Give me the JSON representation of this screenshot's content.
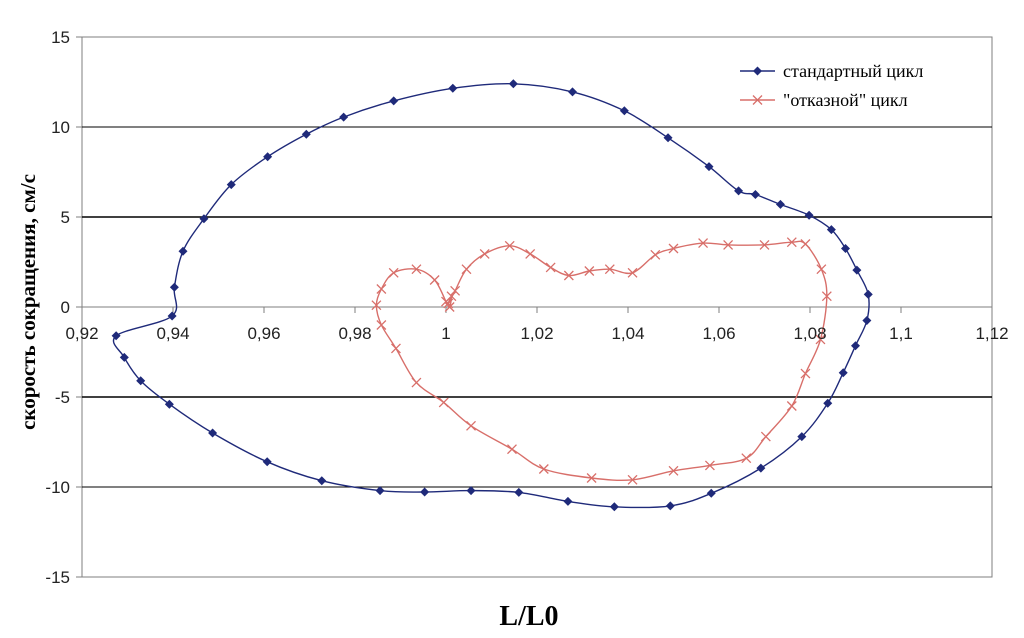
{
  "chart_data": {
    "type": "scatter",
    "title": "",
    "xlabel": "L/L0",
    "ylabel": "скорость сокращения, см/с",
    "xlim": [
      0.92,
      1.12
    ],
    "ylim": [
      -15,
      15
    ],
    "x_ticks": [
      0.92,
      0.94,
      0.96,
      0.98,
      1.0,
      1.02,
      1.04,
      1.06,
      1.08,
      1.1,
      1.12
    ],
    "x_tick_labels": [
      "0,92",
      "0,94",
      "0,96",
      "0,98",
      "1",
      "1,02",
      "1,04",
      "1,06",
      "1,08",
      "1,1",
      "1,12"
    ],
    "y_ticks": [
      15,
      10,
      5,
      0,
      -5,
      -10,
      -15
    ],
    "y_tick_labels": [
      "15",
      "10",
      "5",
      "0",
      "-5",
      "-10",
      "-15"
    ],
    "gridlines_y": [
      10,
      5,
      -5,
      -10
    ],
    "legend_position": "top-right",
    "series": [
      {
        "name": "стандартный цикл",
        "color": "#1f2a7a",
        "marker": "diamond",
        "points": [
          [
            0.9403,
            1.1
          ],
          [
            0.9422,
            3.1
          ],
          [
            0.9468,
            4.9
          ],
          [
            0.9528,
            6.8
          ],
          [
            0.9608,
            8.35
          ],
          [
            0.9693,
            9.6
          ],
          [
            0.9775,
            10.55
          ],
          [
            0.9885,
            11.45
          ],
          [
            1.0015,
            12.15
          ],
          [
            1.0148,
            12.4
          ],
          [
            1.0278,
            11.95
          ],
          [
            1.0392,
            10.9
          ],
          [
            1.0488,
            9.4
          ],
          [
            1.0578,
            7.8
          ],
          [
            1.0643,
            6.45
          ],
          [
            1.068,
            6.25
          ],
          [
            1.0735,
            5.7
          ],
          [
            1.0798,
            5.1
          ],
          [
            1.0847,
            4.3
          ],
          [
            1.0878,
            3.25
          ],
          [
            1.0903,
            2.05
          ],
          [
            1.0928,
            0.7
          ],
          [
            1.0925,
            -0.75
          ],
          [
            1.09,
            -2.15
          ],
          [
            1.0873,
            -3.65
          ],
          [
            1.0839,
            -5.35
          ],
          [
            1.0782,
            -7.2
          ],
          [
            1.0692,
            -8.95
          ],
          [
            1.0583,
            -10.35
          ],
          [
            1.0493,
            -11.05
          ],
          [
            1.037,
            -11.1
          ],
          [
            1.0268,
            -10.8
          ],
          [
            1.016,
            -10.3
          ],
          [
            1.0055,
            -10.2
          ],
          [
            0.9953,
            -10.28
          ],
          [
            0.9855,
            -10.2
          ],
          [
            0.9727,
            -9.65
          ],
          [
            0.9607,
            -8.6
          ],
          [
            0.9487,
            -7.0
          ],
          [
            0.9392,
            -5.4
          ],
          [
            0.9329,
            -4.1
          ],
          [
            0.9293,
            -2.8
          ],
          [
            0.9275,
            -1.6
          ],
          [
            0.9398,
            -0.5
          ]
        ]
      },
      {
        "name": "\"отказной\" цикл",
        "color": "#d86f6a",
        "marker": "x",
        "points": [
          [
            1.0,
            0.3
          ],
          [
            0.9975,
            1.5
          ],
          [
            0.9935,
            2.1
          ],
          [
            0.9885,
            1.9
          ],
          [
            0.9858,
            1.0
          ],
          [
            0.9847,
            0.1
          ],
          [
            0.9858,
            -1.0
          ],
          [
            0.989,
            -2.3
          ],
          [
            0.9935,
            -4.2
          ],
          [
            0.9995,
            -5.3
          ],
          [
            1.0055,
            -6.6
          ],
          [
            1.0145,
            -7.9
          ],
          [
            1.0215,
            -9.0
          ],
          [
            1.032,
            -9.5
          ],
          [
            1.041,
            -9.6
          ],
          [
            1.05,
            -9.1
          ],
          [
            1.058,
            -8.8
          ],
          [
            1.066,
            -8.4
          ],
          [
            1.0703,
            -7.2
          ],
          [
            1.076,
            -5.5
          ],
          [
            1.079,
            -3.7
          ],
          [
            1.0823,
            -1.8
          ],
          [
            1.0837,
            0.6
          ],
          [
            1.0825,
            2.1
          ],
          [
            1.079,
            3.5
          ],
          [
            1.076,
            3.6
          ],
          [
            1.07,
            3.45
          ],
          [
            1.062,
            3.45
          ],
          [
            1.0565,
            3.55
          ],
          [
            1.05,
            3.25
          ],
          [
            1.046,
            2.9
          ],
          [
            1.041,
            1.9
          ],
          [
            1.036,
            2.1
          ],
          [
            1.0315,
            2.0
          ],
          [
            1.027,
            1.75
          ],
          [
            1.023,
            2.2
          ],
          [
            1.0185,
            2.95
          ],
          [
            1.014,
            3.4
          ],
          [
            1.0085,
            2.95
          ],
          [
            1.0045,
            2.1
          ],
          [
            1.002,
            0.9
          ],
          [
            1.0005,
            0.2
          ],
          [
            1.0012,
            0.6
          ],
          [
            1.0008,
            0.0
          ]
        ]
      }
    ]
  }
}
